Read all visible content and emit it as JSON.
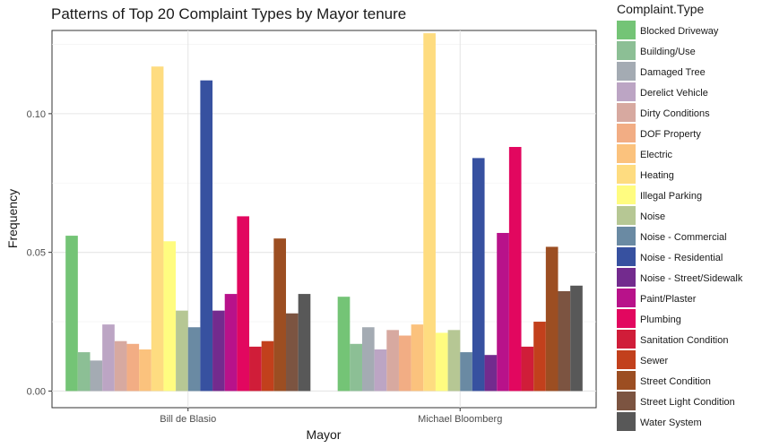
{
  "chart_data": {
    "type": "bar",
    "title": "Patterns of Top 20 Complaint Types by Mayor tenure",
    "xlabel": "Mayor",
    "ylabel": "Frequency",
    "ylim": [
      -0.006,
      0.13
    ],
    "yticks": [
      0.0,
      0.05,
      0.1
    ],
    "ytick_labels": [
      "0.00",
      "0.05",
      "0.10"
    ],
    "grid": true,
    "legend_title": "Complaint.Type",
    "legend_position": "right",
    "categories": [
      "Bill de Blasio",
      "Michael Bloomberg"
    ],
    "series": [
      {
        "name": "Blocked Driveway",
        "color": "#74c476",
        "values": [
          0.056,
          0.034
        ]
      },
      {
        "name": "Building/Use",
        "color": "#8cbf95",
        "values": [
          0.014,
          0.017
        ]
      },
      {
        "name": "Damaged Tree",
        "color": "#a4abb3",
        "values": [
          0.011,
          0.023
        ]
      },
      {
        "name": "Derelict Vehicle",
        "color": "#bca5c4",
        "values": [
          0.024,
          0.015
        ]
      },
      {
        "name": "Dirty Conditions",
        "color": "#d7a9a0",
        "values": [
          0.018,
          0.022
        ]
      },
      {
        "name": "DOF Property",
        "color": "#f2ad84",
        "values": [
          0.017,
          0.02
        ]
      },
      {
        "name": "Electric",
        "color": "#fbc27d",
        "values": [
          0.015,
          0.024
        ]
      },
      {
        "name": "Heating",
        "color": "#fedc80",
        "values": [
          0.117,
          0.129
        ]
      },
      {
        "name": "Illegal Parking",
        "color": "#fffc80",
        "values": [
          0.054,
          0.021
        ]
      },
      {
        "name": "Noise",
        "color": "#b6c794",
        "values": [
          0.029,
          0.022
        ]
      },
      {
        "name": "Noise - Commercial",
        "color": "#6a8aa3",
        "values": [
          0.023,
          0.014
        ]
      },
      {
        "name": "Noise - Residential",
        "color": "#3751a0",
        "values": [
          0.112,
          0.084
        ]
      },
      {
        "name": "Noise - Street/Sidewalk",
        "color": "#732b8e",
        "values": [
          0.029,
          0.013
        ]
      },
      {
        "name": "Paint/Plaster",
        "color": "#b8128a",
        "values": [
          0.035,
          0.057
        ]
      },
      {
        "name": "Plumbing",
        "color": "#e2075f",
        "values": [
          0.063,
          0.088
        ]
      },
      {
        "name": "Sanitation Condition",
        "color": "#d01d39",
        "values": [
          0.016,
          0.016
        ]
      },
      {
        "name": "Sewer",
        "color": "#c2401c",
        "values": [
          0.018,
          0.025
        ]
      },
      {
        "name": "Street Condition",
        "color": "#9c4e22",
        "values": [
          0.055,
          0.052
        ]
      },
      {
        "name": "Street Light Condition",
        "color": "#7c5441",
        "values": [
          0.028,
          0.036
        ]
      },
      {
        "name": "Water System",
        "color": "#585858",
        "values": [
          0.035,
          0.038
        ]
      }
    ]
  }
}
